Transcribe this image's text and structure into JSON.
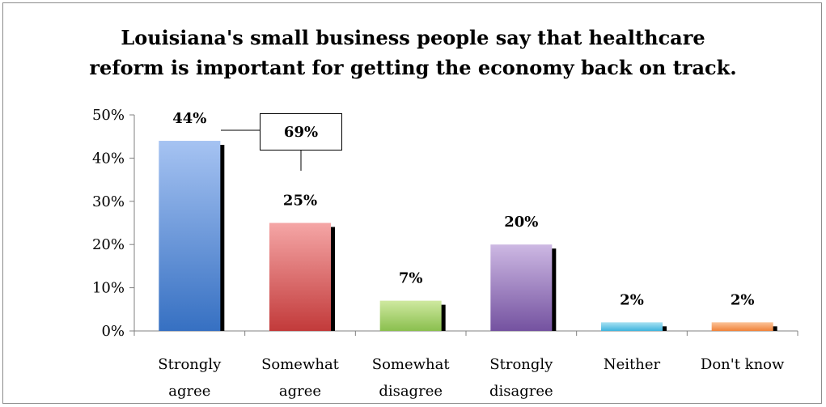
{
  "chart_data": {
    "type": "bar",
    "title": "Louisiana's small business people say that healthcare reform is important for getting the economy back on track.",
    "title_lines": [
      "Louisiana's small business people say that healthcare",
      "reform is important for getting the economy back on track."
    ],
    "categories": [
      [
        "Strongly",
        "agree"
      ],
      [
        "Somewhat",
        "agree"
      ],
      [
        "Somewhat",
        "disagree"
      ],
      [
        "Strongly",
        "disagree"
      ],
      [
        "Neither"
      ],
      [
        "Don't know"
      ]
    ],
    "values": [
      44,
      25,
      7,
      20,
      2,
      2
    ],
    "data_labels": [
      "44%",
      "25%",
      "7%",
      "20%",
      "2%",
      "2%"
    ],
    "ylim": [
      0,
      50
    ],
    "yticks": [
      "0%",
      "10%",
      "20%",
      "30%",
      "40%",
      "50%"
    ],
    "grid": false,
    "legend": "none",
    "bar_colors": [
      [
        "#a6c3f2",
        "#3670c2"
      ],
      [
        "#f5a6a6",
        "#c23a3a"
      ],
      [
        "#cfe9a0",
        "#8abf4e"
      ],
      [
        "#cdb8e3",
        "#7452a0"
      ],
      [
        "#a8e1f3",
        "#3fb4dc"
      ],
      [
        "#fbc49a",
        "#f0823a"
      ]
    ],
    "annotation": {
      "text": "69%"
    }
  }
}
